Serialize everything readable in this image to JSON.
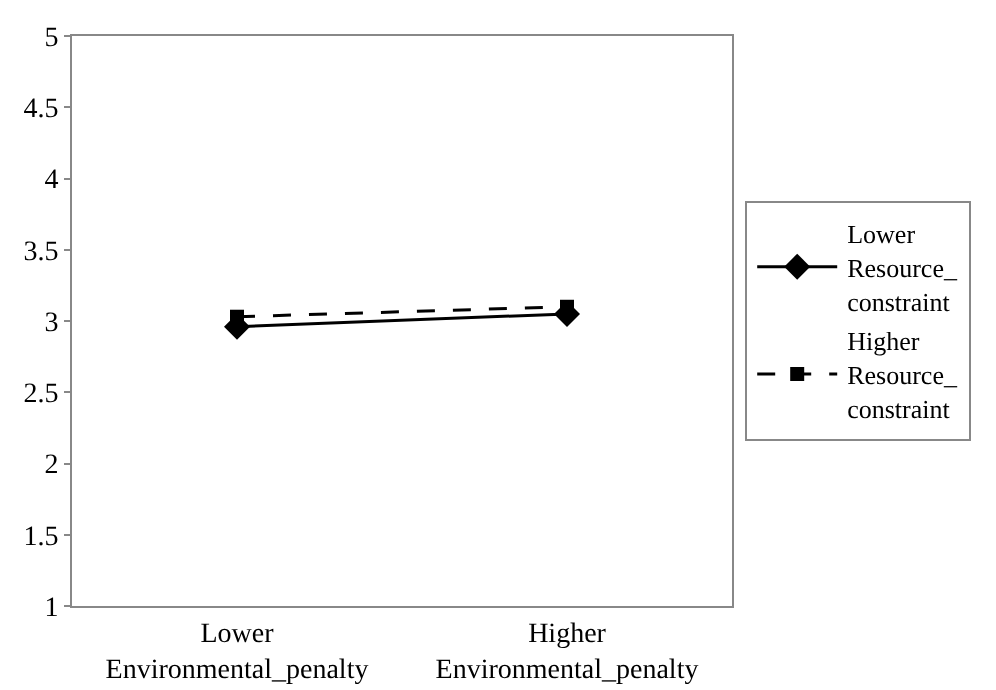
{
  "chart_data": {
    "type": "line",
    "categories": [
      "Lower Environmental_penalty",
      "Higher Environmental_penalty"
    ],
    "series": [
      {
        "name": "Lower Resource_constraint",
        "color": "#000000",
        "values": [
          2.96,
          3.05
        ],
        "marker": "diamond",
        "line_style": "solid"
      },
      {
        "name": "Higher Resource_constraint",
        "color": "#000000",
        "values": [
          3.03,
          3.1
        ],
        "marker": "square",
        "line_style": "dashed"
      }
    ],
    "ylim": [
      1,
      5
    ],
    "yticks": [
      1,
      1.5,
      2,
      2.5,
      3,
      3.5,
      4,
      4.5,
      5
    ],
    "grid": false,
    "legend": "right"
  }
}
